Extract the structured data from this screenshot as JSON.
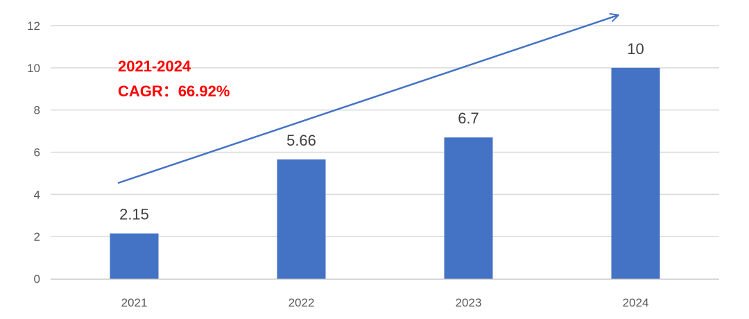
{
  "chart_data": {
    "type": "bar",
    "categories": [
      "2021",
      "2022",
      "2023",
      "2024"
    ],
    "values": [
      2.15,
      5.66,
      6.7,
      10
    ],
    "data_labels": [
      "2.15",
      "5.66",
      "6.7",
      "10"
    ],
    "ylim": [
      0,
      12
    ],
    "yticks": [
      0,
      2,
      4,
      6,
      8,
      10,
      12
    ],
    "grid": true,
    "legend": "none",
    "annotation": {
      "line1": "2021-2024",
      "line2": "CAGR：66.92%"
    },
    "trend_arrow": true
  },
  "colors": {
    "bar": "#4472C4",
    "arrow": "#4472C4",
    "grid": "#D9D9D9",
    "axis": "#BFBFBF",
    "annotation": "#FF0000"
  }
}
